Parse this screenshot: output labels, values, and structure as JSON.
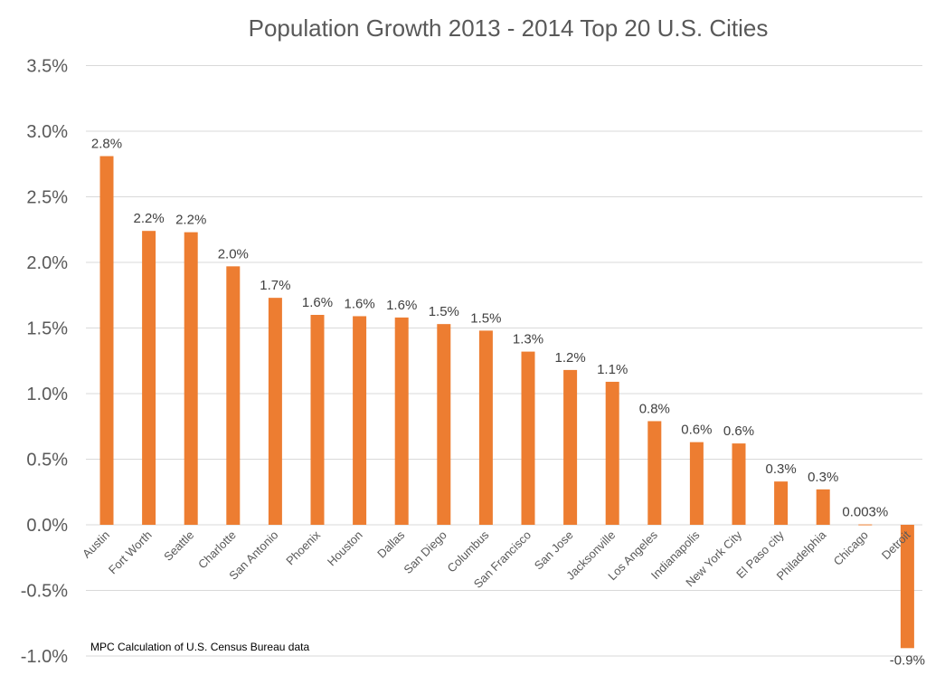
{
  "chart_data": {
    "type": "bar",
    "title": "Population Growth 2013 - 2014 Top 20 U.S. Cities",
    "xlabel": "",
    "ylabel": "",
    "ylim": [
      -1.0,
      3.5
    ],
    "yticks": [
      "3.5%",
      "3.0%",
      "2.5%",
      "2.0%",
      "1.5%",
      "1.0%",
      "0.5%",
      "0.0%",
      "-0.5%",
      "-1.0%"
    ],
    "ytick_values": [
      3.5,
      3.0,
      2.5,
      2.0,
      1.5,
      1.0,
      0.5,
      0.0,
      -0.5,
      -1.0
    ],
    "grid": true,
    "legend": "none",
    "bar_color": "#ED7D31",
    "categories": [
      "Austin",
      "Fort Worth",
      "Seattle",
      "Charlotte",
      "San Antonio",
      "Phoenix",
      "Houston",
      "Dallas",
      "San Diego",
      "Columbus",
      "San Francisco",
      "San Jose",
      "Jacksonville",
      "Los Angeles",
      "Indianapolis",
      "New York City",
      "El Paso city",
      "Philadelphia",
      "Chicago",
      "Detroit"
    ],
    "values": [
      2.81,
      2.24,
      2.23,
      1.97,
      1.73,
      1.6,
      1.59,
      1.58,
      1.53,
      1.48,
      1.32,
      1.18,
      1.09,
      0.79,
      0.63,
      0.62,
      0.33,
      0.27,
      0.003,
      -0.94
    ],
    "data_labels": [
      "2.8%",
      "2.2%",
      "2.2%",
      "2.0%",
      "1.7%",
      "1.6%",
      "1.6%",
      "1.6%",
      "1.5%",
      "1.5%",
      "1.3%",
      "1.2%",
      "1.1%",
      "0.8%",
      "0.6%",
      "0.6%",
      "0.3%",
      "0.3%",
      "0.003%",
      "-0.9%"
    ],
    "annotation": "MPC Calculation of U.S. Census Bureau data"
  }
}
